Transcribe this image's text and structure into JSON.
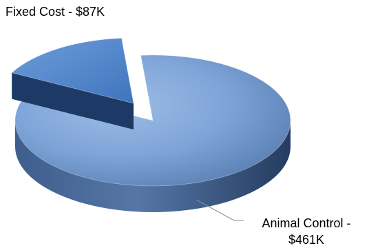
{
  "chart_data": {
    "type": "pie",
    "style": "3d-exploded",
    "slices": [
      {
        "name": "Animal Control",
        "value": 461,
        "display": [
          "Animal Control -",
          "$461K"
        ],
        "color": "#7fa4d8",
        "dark": "#2f4d78"
      },
      {
        "name": "Fixed Cost",
        "value": 87,
        "display": [
          "Fixed Cost - $87K"
        ],
        "color": "#5a8fd1",
        "dark": "#224a85"
      }
    ],
    "unit": "$K",
    "title": "",
    "legend": "none"
  }
}
